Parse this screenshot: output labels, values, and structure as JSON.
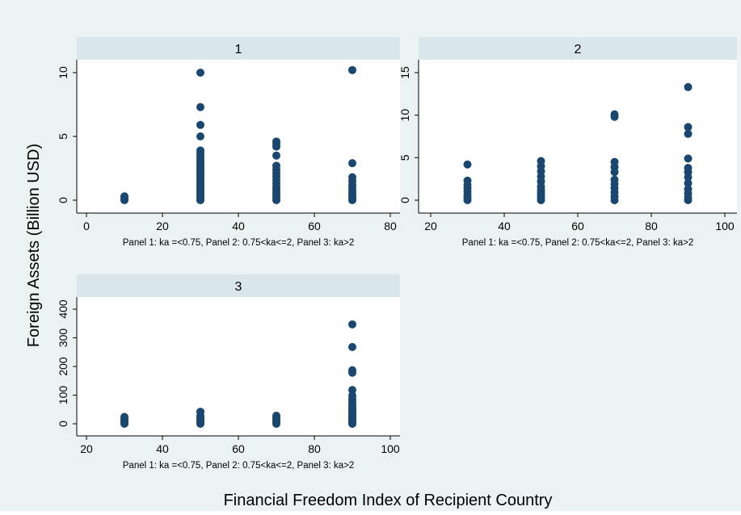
{
  "figure": {
    "ylabel": "Foreign Assets (Billion USD)",
    "xlabel": "Financial Freedom  Index of Recipient Country",
    "note": "Panel 1: ka =<0.75, Panel 2: 0.75<ka<=2, Panel 3: ka>2",
    "colors": {
      "outer": "#eaf2f3",
      "plot": "#ffffff",
      "strip": "#d9e6eb",
      "marker": "#1a476f"
    }
  },
  "chart_data": [
    {
      "type": "scatter",
      "panel_title": "1",
      "xlim": [
        0,
        80
      ],
      "ylim": [
        0,
        10
      ],
      "xticks": [
        0,
        20,
        40,
        60,
        80
      ],
      "yticks": [
        0,
        5,
        10
      ],
      "points": [
        [
          10,
          0.0
        ],
        [
          10,
          0.1
        ],
        [
          10,
          0.2
        ],
        [
          10,
          0.3
        ],
        [
          30,
          0.0
        ],
        [
          30,
          0.1
        ],
        [
          30,
          0.25
        ],
        [
          30,
          0.4
        ],
        [
          30,
          0.55
        ],
        [
          30,
          0.7
        ],
        [
          30,
          0.85
        ],
        [
          30,
          1.0
        ],
        [
          30,
          1.15
        ],
        [
          30,
          1.3
        ],
        [
          30,
          1.45
        ],
        [
          30,
          1.6
        ],
        [
          30,
          1.75
        ],
        [
          30,
          1.9
        ],
        [
          30,
          2.05
        ],
        [
          30,
          2.2
        ],
        [
          30,
          2.35
        ],
        [
          30,
          2.5
        ],
        [
          30,
          2.65
        ],
        [
          30,
          2.8
        ],
        [
          30,
          2.95
        ],
        [
          30,
          3.1
        ],
        [
          30,
          3.3
        ],
        [
          30,
          3.5
        ],
        [
          30,
          3.7
        ],
        [
          30,
          3.9
        ],
        [
          30,
          5.0
        ],
        [
          30,
          5.9
        ],
        [
          30,
          7.3
        ],
        [
          30,
          10.0
        ],
        [
          50,
          0.0
        ],
        [
          50,
          0.15
        ],
        [
          50,
          0.3
        ],
        [
          50,
          0.5
        ],
        [
          50,
          0.7
        ],
        [
          50,
          0.9
        ],
        [
          50,
          1.1
        ],
        [
          50,
          1.35
        ],
        [
          50,
          1.6
        ],
        [
          50,
          1.85
        ],
        [
          50,
          2.1
        ],
        [
          50,
          2.4
        ],
        [
          50,
          2.7
        ],
        [
          50,
          3.5
        ],
        [
          50,
          4.2
        ],
        [
          50,
          4.4
        ],
        [
          50,
          4.6
        ],
        [
          70,
          0.0
        ],
        [
          70,
          0.15
        ],
        [
          70,
          0.3
        ],
        [
          70,
          0.5
        ],
        [
          70,
          0.7
        ],
        [
          70,
          0.95
        ],
        [
          70,
          1.2
        ],
        [
          70,
          1.5
        ],
        [
          70,
          1.8
        ],
        [
          70,
          2.9
        ],
        [
          70,
          10.2
        ]
      ]
    },
    {
      "type": "scatter",
      "panel_title": "2",
      "xlim": [
        20,
        100
      ],
      "ylim": [
        0,
        15
      ],
      "xticks": [
        20,
        40,
        60,
        80,
        100
      ],
      "yticks": [
        0,
        5,
        10,
        15
      ],
      "points": [
        [
          30,
          0.0
        ],
        [
          30,
          0.3
        ],
        [
          30,
          0.6
        ],
        [
          30,
          1.0
        ],
        [
          30,
          1.4
        ],
        [
          30,
          1.8
        ],
        [
          30,
          2.3
        ],
        [
          30,
          4.2
        ],
        [
          50,
          0.0
        ],
        [
          50,
          0.3
        ],
        [
          50,
          0.6
        ],
        [
          50,
          0.9
        ],
        [
          50,
          1.2
        ],
        [
          50,
          1.6
        ],
        [
          50,
          2.2
        ],
        [
          50,
          2.8
        ],
        [
          50,
          3.4
        ],
        [
          50,
          4.0
        ],
        [
          50,
          4.6
        ],
        [
          70,
          0.0
        ],
        [
          70,
          0.4
        ],
        [
          70,
          0.9
        ],
        [
          70,
          1.4
        ],
        [
          70,
          1.9
        ],
        [
          70,
          2.4
        ],
        [
          70,
          3.3
        ],
        [
          70,
          3.9
        ],
        [
          70,
          4.5
        ],
        [
          70,
          9.8
        ],
        [
          70,
          10.1
        ],
        [
          90,
          0.0
        ],
        [
          90,
          0.3
        ],
        [
          90,
          0.8
        ],
        [
          90,
          1.3
        ],
        [
          90,
          2.0
        ],
        [
          90,
          2.7
        ],
        [
          90,
          3.3
        ],
        [
          90,
          3.8
        ],
        [
          90,
          4.9
        ],
        [
          90,
          7.8
        ],
        [
          90,
          8.6
        ],
        [
          90,
          13.3
        ]
      ]
    },
    {
      "type": "scatter",
      "panel_title": "3",
      "xlim": [
        20,
        100
      ],
      "ylim": [
        0,
        400
      ],
      "xticks": [
        20,
        40,
        60,
        80,
        100
      ],
      "yticks": [
        0,
        100,
        200,
        300,
        400
      ],
      "points": [
        [
          30,
          0
        ],
        [
          30,
          4
        ],
        [
          30,
          8
        ],
        [
          30,
          13
        ],
        [
          30,
          18
        ],
        [
          30,
          24
        ],
        [
          50,
          0
        ],
        [
          50,
          5
        ],
        [
          50,
          10
        ],
        [
          50,
          16
        ],
        [
          50,
          22
        ],
        [
          50,
          28
        ],
        [
          50,
          42
        ],
        [
          70,
          0
        ],
        [
          70,
          5
        ],
        [
          70,
          10
        ],
        [
          70,
          16
        ],
        [
          70,
          22
        ],
        [
          70,
          28
        ],
        [
          90,
          0
        ],
        [
          90,
          4
        ],
        [
          90,
          8
        ],
        [
          90,
          12
        ],
        [
          90,
          17
        ],
        [
          90,
          22
        ],
        [
          90,
          27
        ],
        [
          90,
          32
        ],
        [
          90,
          38
        ],
        [
          90,
          44
        ],
        [
          90,
          50
        ],
        [
          90,
          58
        ],
        [
          90,
          66
        ],
        [
          90,
          75
        ],
        [
          90,
          85
        ],
        [
          90,
          98
        ],
        [
          90,
          118
        ],
        [
          90,
          178
        ],
        [
          90,
          187
        ],
        [
          90,
          268
        ],
        [
          90,
          347
        ]
      ]
    }
  ]
}
